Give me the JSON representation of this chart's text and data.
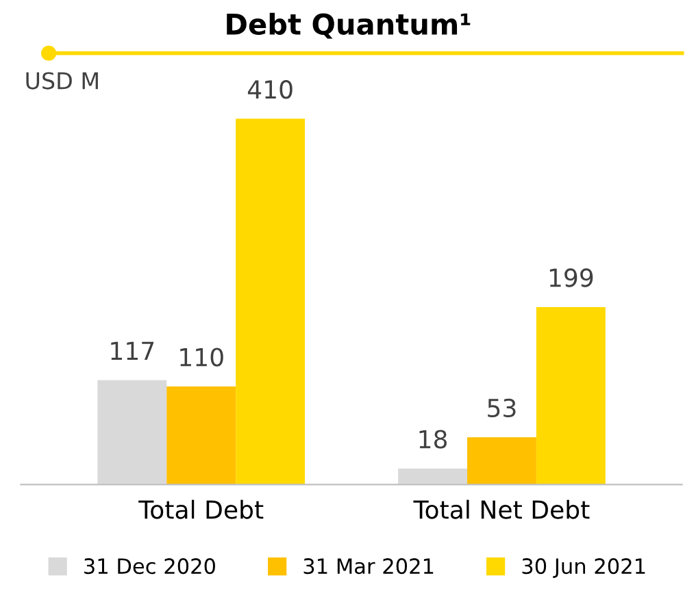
{
  "chart_data": {
    "type": "bar",
    "title": "Debt Quantum¹",
    "ylabel": "USD M",
    "categories": [
      "Total Debt",
      "Total Net Debt"
    ],
    "series": [
      {
        "name": "31 Dec 2020",
        "color": "#d9d9d9",
        "values": [
          117,
          18
        ]
      },
      {
        "name": "31 Mar 2021",
        "color": "#ffc000",
        "values": [
          110,
          53
        ]
      },
      {
        "name": "30 Jun 2021",
        "color": "#ffd900",
        "values": [
          410,
          199
        ]
      }
    ],
    "data_labels": true,
    "legend": "bottom"
  }
}
